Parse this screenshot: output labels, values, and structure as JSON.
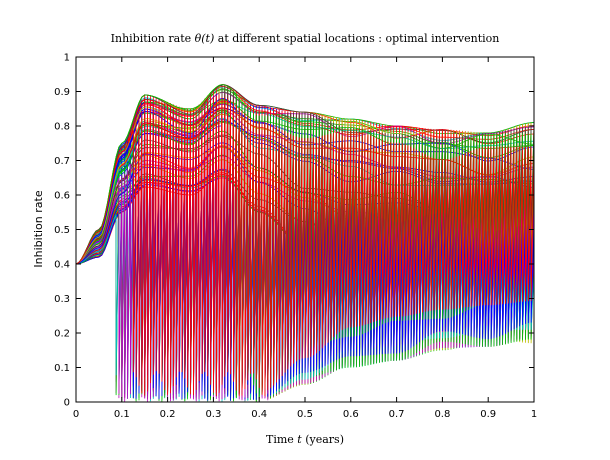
{
  "chart_data": {
    "type": "line",
    "title_prefix": "Inhibition rate",
    "title_var": "θ(t)",
    "title_suffix": "at different spatial locations :  optimal intervention",
    "xlabel_prefix": "Time",
    "xlabel_var": "t",
    "xlabel_suffix": "(years)",
    "ylabel": "Inhibition rate",
    "xlim": [
      0,
      1
    ],
    "ylim": [
      0,
      1
    ],
    "x_ticks": [
      "0",
      "0.1",
      "0.2",
      "0.3",
      "0.4",
      "0.5",
      "0.6",
      "0.7",
      "0.8",
      "0.9",
      "1"
    ],
    "y_ticks": [
      "0",
      "0.1",
      "0.2",
      "0.3",
      "0.4",
      "0.5",
      "0.6",
      "0.7",
      "0.8",
      "0.9",
      "1"
    ],
    "grid": false,
    "legend": "none",
    "initial_value": 0.4,
    "series_count": 90,
    "line_colors": [
      "#0000ff",
      "#00bf00",
      "#ff0000",
      "#00bfbf",
      "#bf00bf",
      "#bfbf00",
      "#404040",
      "#0000ff",
      "#00bf00",
      "#ff0000"
    ],
    "series_groups": [
      {
        "description": "high branch",
        "x": [
          0,
          0.05,
          0.1,
          0.15,
          0.25,
          0.32,
          0.4,
          0.5,
          0.6,
          0.7,
          0.8,
          0.9,
          1.0
        ],
        "y_range_at_x": [
          [
            0.4,
            0.4
          ],
          [
            0.42,
            0.5
          ],
          [
            0.55,
            0.75
          ],
          [
            0.62,
            0.89
          ],
          [
            0.6,
            0.85
          ],
          [
            0.65,
            0.92
          ],
          [
            0.55,
            0.86
          ],
          [
            0.45,
            0.84
          ],
          [
            0.4,
            0.82
          ],
          [
            0.4,
            0.8
          ],
          [
            0.38,
            0.79
          ],
          [
            0.36,
            0.78
          ],
          [
            0.33,
            0.81
          ]
        ]
      },
      {
        "description": "low branch",
        "x": [
          0,
          0.1,
          0.2,
          0.3,
          0.4,
          0.5,
          0.6,
          0.7,
          0.8,
          0.9,
          1.0
        ],
        "y_range_at_x": [
          [
            0.0,
            0.0
          ],
          [
            0.0,
            0.08
          ],
          [
            0.0,
            0.08
          ],
          [
            0.0,
            0.08
          ],
          [
            0.0,
            0.06
          ],
          [
            0.05,
            0.3
          ],
          [
            0.1,
            0.38
          ],
          [
            0.12,
            0.42
          ],
          [
            0.15,
            0.45
          ],
          [
            0.16,
            0.47
          ],
          [
            0.17,
            0.5
          ]
        ]
      }
    ]
  }
}
